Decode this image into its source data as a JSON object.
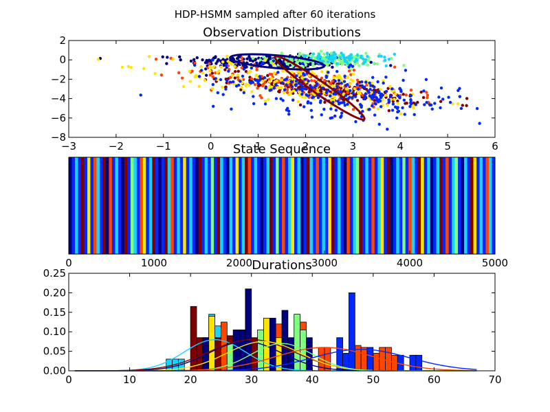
{
  "figure": {
    "suptitle": "HDP-HSMM sampled after 60 iterations"
  },
  "chart_data": [
    {
      "type": "scatter",
      "title": "Observation Distributions",
      "xlim": [
        -3,
        6
      ],
      "ylim": [
        -8,
        2
      ],
      "xticks": [
        "−3",
        "−2",
        "−1",
        "0",
        "1",
        "2",
        "3",
        "4",
        "5",
        "6"
      ],
      "yticks": [
        "2",
        "0",
        "−2",
        "−4",
        "−6",
        "−8"
      ],
      "series": [
        {
          "color": "#00007f",
          "center": [
            1.3,
            -0.2
          ],
          "spread": [
            0.9,
            0.35
          ],
          "tilt": -0.05,
          "count": 260
        },
        {
          "color": "#7fff7f",
          "center": [
            2.4,
            0.0
          ],
          "spread": [
            0.6,
            0.35
          ],
          "tilt": -0.1,
          "count": 180
        },
        {
          "color": "#19d3ff",
          "center": [
            2.8,
            0.1
          ],
          "spread": [
            0.5,
            0.3
          ],
          "tilt": -0.1,
          "count": 70
        },
        {
          "color": "#7f0000",
          "center": [
            2.4,
            -3.0
          ],
          "spread": [
            1.0,
            0.5
          ],
          "tilt": -0.55,
          "count": 260
        },
        {
          "color": "#ff4600",
          "center": [
            1.9,
            -2.4
          ],
          "spread": [
            1.2,
            0.8
          ],
          "tilt": -0.55,
          "count": 170
        },
        {
          "color": "#ffe500",
          "center": [
            2.0,
            -2.6
          ],
          "spread": [
            1.4,
            1.0
          ],
          "tilt": -0.55,
          "count": 220
        },
        {
          "color": "#0028ff",
          "center": [
            2.7,
            -3.4
          ],
          "spread": [
            1.3,
            1.2
          ],
          "tilt": -0.55,
          "count": 280
        }
      ],
      "ellipses": [
        {
          "color": "#00007f",
          "center": [
            1.4,
            -0.2
          ],
          "radii": [
            1.0,
            0.3
          ],
          "angle": -5
        },
        {
          "color": "#7f0000",
          "center": [
            2.3,
            -2.9
          ],
          "radii": [
            1.15,
            0.3
          ],
          "angle": -35
        }
      ]
    },
    {
      "type": "heatmap",
      "title": "State Sequence",
      "xlim": [
        0,
        5000
      ],
      "xticks": [
        "0",
        "1000",
        "2000",
        "3000",
        "4000",
        "5000"
      ],
      "colors": [
        "#00007f",
        "#0028ff",
        "#19d3ff",
        "#7fff7f",
        "#ffe500",
        "#ff4600",
        "#7f0000"
      ],
      "segments": [
        0,
        1,
        2,
        1,
        6,
        1,
        4,
        1,
        5,
        2,
        1,
        6,
        0,
        5,
        1,
        2,
        1,
        0,
        6,
        1,
        3,
        2,
        1,
        5,
        4,
        1,
        2,
        6,
        1,
        0,
        1,
        6,
        2,
        5,
        1,
        2,
        1,
        4,
        1,
        2,
        1,
        0,
        6,
        1,
        2,
        1,
        3,
        1,
        6,
        2,
        1,
        0,
        2,
        1,
        4,
        1,
        2,
        6,
        5,
        1,
        2,
        1,
        0,
        1,
        2,
        6,
        1,
        3,
        1,
        5,
        1,
        2,
        4,
        1,
        2,
        0,
        1,
        6,
        2,
        1,
        5,
        1,
        2,
        1,
        4,
        6,
        1,
        2,
        1,
        0,
        5,
        1,
        2,
        3,
        6,
        1,
        2,
        1,
        5,
        1,
        2,
        4,
        1,
        6,
        0,
        1,
        2,
        1,
        3,
        1,
        5,
        2,
        1,
        6,
        4,
        1,
        2,
        0,
        1,
        2,
        6,
        1,
        5,
        1,
        2,
        3,
        1,
        0,
        2,
        1,
        6,
        4,
        1,
        2,
        1,
        5,
        2,
        1
      ]
    },
    {
      "type": "bar",
      "title": "Durations",
      "xlim": [
        0,
        70
      ],
      "ylim": [
        0,
        0.25
      ],
      "xticks": [
        "0",
        "10",
        "20",
        "30",
        "40",
        "50",
        "60",
        "70"
      ],
      "yticks": [
        "0.00",
        "0.05",
        "0.10",
        "0.15",
        "0.20",
        "0.25"
      ],
      "bar_width": 1,
      "series": [
        {
          "color": "#19d3ff",
          "bars": [
            [
              16,
              0.03
            ],
            [
              17,
              0.03
            ],
            [
              18,
              0.03
            ],
            [
              23,
              0.145
            ],
            [
              24,
              0.115
            ],
            [
              26,
              0.03
            ]
          ]
        },
        {
          "color": "#7f0000",
          "bars": [
            [
              20,
              0.165
            ],
            [
              21,
              0.085
            ],
            [
              22,
              0.085
            ],
            [
              24,
              0.085
            ],
            [
              26,
              0.09
            ],
            [
              27,
              0.085
            ],
            [
              29,
              0.085
            ],
            [
              30,
              0.085
            ],
            [
              32,
              0.075
            ],
            [
              33,
              0.065
            ],
            [
              35,
              0.05
            ],
            [
              37,
              0.05
            ]
          ]
        },
        {
          "color": "#00007f",
          "bars": [
            [
              22,
              0.085
            ],
            [
              25,
              0.085
            ],
            [
              27,
              0.105
            ],
            [
              28,
              0.105
            ],
            [
              29,
              0.21
            ],
            [
              31,
              0.085
            ],
            [
              33,
              0.135
            ],
            [
              35,
              0.155
            ],
            [
              36,
              0.085
            ],
            [
              39,
              0.085
            ]
          ]
        },
        {
          "color": "#ff4600",
          "bars": [
            [
              25,
              0.125
            ],
            [
              34,
              0.12
            ],
            [
              38,
              0.125
            ],
            [
              41,
              0.06
            ],
            [
              42,
              0.06
            ],
            [
              47,
              0.065
            ],
            [
              48,
              0.06
            ],
            [
              50,
              0.045
            ],
            [
              51,
              0.06
            ],
            [
              52,
              0.06
            ],
            [
              53,
              0.04
            ]
          ]
        },
        {
          "color": "#ffe500",
          "bars": [
            [
              23,
              0.14
            ],
            [
              32,
              0.135
            ],
            [
              34,
              0.085
            ]
          ]
        },
        {
          "color": "#7fff7f",
          "bars": [
            [
              26,
              0.07
            ],
            [
              31,
              0.105
            ],
            [
              37,
              0.145
            ],
            [
              38,
              0.105
            ]
          ]
        },
        {
          "color": "#0028ff",
          "bars": [
            [
              44,
              0.085
            ],
            [
              45,
              0.045
            ],
            [
              46,
              0.2
            ],
            [
              49,
              0.06
            ],
            [
              54,
              0.04
            ],
            [
              56,
              0.04
            ],
            [
              57,
              0.04
            ]
          ]
        }
      ],
      "curves": [
        {
          "color": "#19d3ff",
          "mu": 24,
          "sigma": 5,
          "peak": 0.08
        },
        {
          "color": "#00007f",
          "mu": 29,
          "sigma": 6,
          "peak": 0.075
        },
        {
          "color": "#7f0000",
          "mu": 30,
          "sigma": 7,
          "peak": 0.08
        },
        {
          "color": "#ffe500",
          "mu": 32,
          "sigma": 6,
          "peak": 0.075
        },
        {
          "color": "#7fff7f",
          "mu": 35,
          "sigma": 5,
          "peak": 0.07
        },
        {
          "color": "#ff4600",
          "mu": 42,
          "sigma": 8,
          "peak": 0.06
        },
        {
          "color": "#0028ff",
          "mu": 48,
          "sigma": 8,
          "peak": 0.055
        }
      ]
    }
  ]
}
